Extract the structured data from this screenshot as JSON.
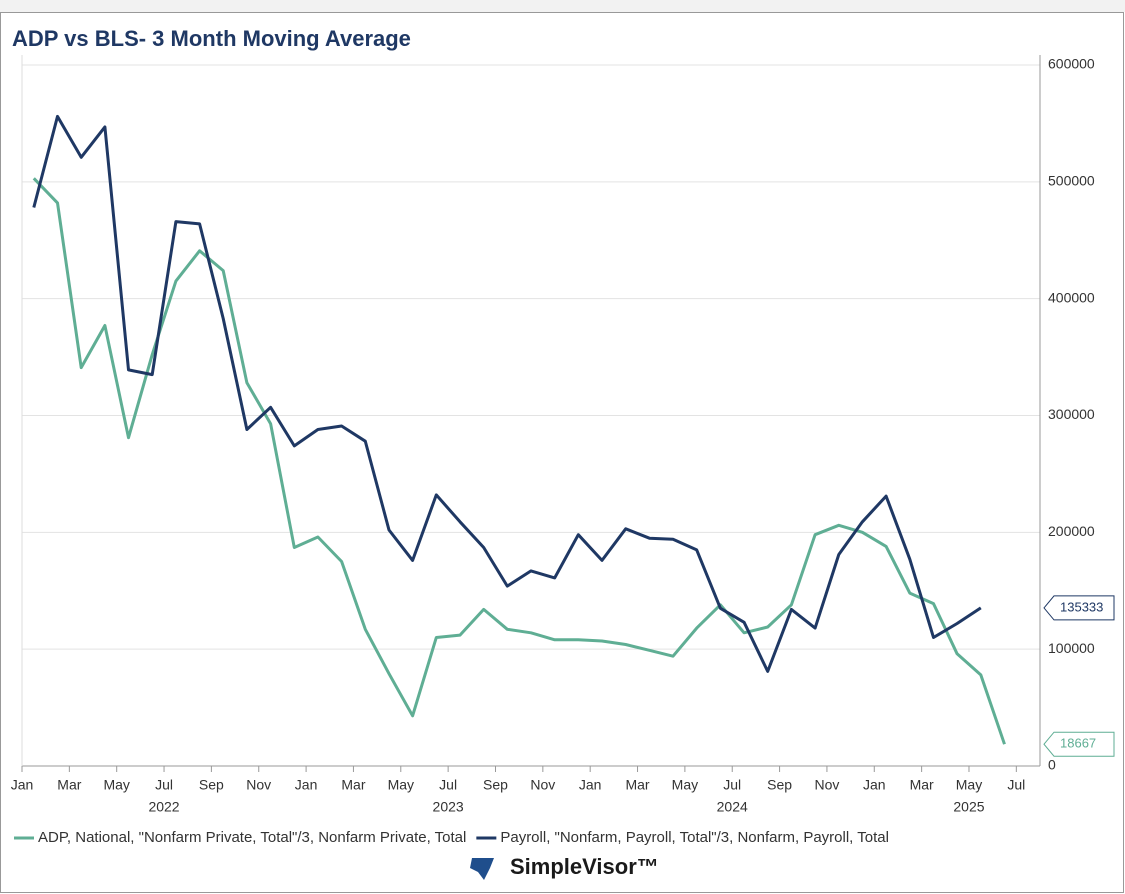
{
  "chart_data": {
    "type": "line",
    "title": "ADP vs BLS- 3 Month Moving Average",
    "brand": "SimpleVisor™",
    "x": [
      "2022-01",
      "2022-02",
      "2022-03",
      "2022-04",
      "2022-05",
      "2022-06",
      "2022-07",
      "2022-08",
      "2022-09",
      "2022-10",
      "2022-11",
      "2022-12",
      "2023-01",
      "2023-02",
      "2023-03",
      "2023-04",
      "2023-05",
      "2023-06",
      "2023-07",
      "2023-08",
      "2023-09",
      "2023-10",
      "2023-11",
      "2023-12",
      "2024-01",
      "2024-02",
      "2024-03",
      "2024-04",
      "2024-05",
      "2024-06",
      "2024-07",
      "2024-08",
      "2024-09",
      "2024-10",
      "2024-11",
      "2024-12",
      "2025-01",
      "2025-02",
      "2025-03",
      "2025-04",
      "2025-05",
      "2025-06"
    ],
    "series": [
      {
        "name": "ADP, National, \"Nonfarm Private, Total\"/3, Nonfarm Private, Total",
        "color": "#5fae94",
        "values": [
          503000,
          482000,
          341000,
          377000,
          281000,
          352000,
          415000,
          441000,
          424000,
          328000,
          293000,
          187000,
          196000,
          175000,
          117000,
          79000,
          43000,
          110000,
          112000,
          134000,
          117000,
          114000,
          108000,
          108000,
          107000,
          104000,
          99000,
          94000,
          118000,
          138000,
          114000,
          119000,
          138000,
          198000,
          206000,
          200000,
          188000,
          148000,
          139000,
          96000,
          78000,
          18667
        ]
      },
      {
        "name": "Payroll, \"Nonfarm, Payroll, Total\"/3, Nonfarm, Payroll, Total",
        "color": "#1f3864",
        "values": [
          478000,
          556000,
          521000,
          547000,
          339000,
          335000,
          466000,
          464000,
          383000,
          288000,
          307000,
          274000,
          288000,
          291000,
          278000,
          202000,
          176000,
          232000,
          209000,
          187000,
          154000,
          167000,
          161000,
          198000,
          176000,
          203000,
          195000,
          194000,
          185000,
          135000,
          123000,
          81000,
          134000,
          118000,
          181000,
          209000,
          231000,
          177000,
          110000,
          122000,
          135333,
          null
        ]
      }
    ],
    "xlim": [
      "2022-01",
      "2025-08"
    ],
    "xticks": [
      {
        "value": "2022-01",
        "label": "Jan"
      },
      {
        "value": "2022-03",
        "label": "Mar"
      },
      {
        "value": "2022-05",
        "label": "May"
      },
      {
        "value": "2022-07",
        "label": "Jul"
      },
      {
        "value": "2022-09",
        "label": "Sep"
      },
      {
        "value": "2022-11",
        "label": "Nov"
      },
      {
        "value": "2023-01",
        "label": "Jan"
      },
      {
        "value": "2023-03",
        "label": "Mar"
      },
      {
        "value": "2023-05",
        "label": "May"
      },
      {
        "value": "2023-07",
        "label": "Jul"
      },
      {
        "value": "2023-09",
        "label": "Sep"
      },
      {
        "value": "2023-11",
        "label": "Nov"
      },
      {
        "value": "2024-01",
        "label": "Jan"
      },
      {
        "value": "2024-03",
        "label": "Mar"
      },
      {
        "value": "2024-05",
        "label": "May"
      },
      {
        "value": "2024-07",
        "label": "Jul"
      },
      {
        "value": "2024-09",
        "label": "Sep"
      },
      {
        "value": "2024-11",
        "label": "Nov"
      },
      {
        "value": "2025-01",
        "label": "Jan"
      },
      {
        "value": "2025-03",
        "label": "Mar"
      },
      {
        "value": "2025-05",
        "label": "May"
      },
      {
        "value": "2025-07",
        "label": "Jul"
      }
    ],
    "year_labels": [
      {
        "value": "2022-07",
        "label": "2022"
      },
      {
        "value": "2023-07",
        "label": "2023"
      },
      {
        "value": "2024-07",
        "label": "2024"
      },
      {
        "value": "2025-05",
        "label": "2025"
      }
    ],
    "ylim": [
      0,
      600000
    ],
    "yticks": [
      0,
      100000,
      200000,
      300000,
      400000,
      500000,
      600000
    ],
    "grid": true
  }
}
